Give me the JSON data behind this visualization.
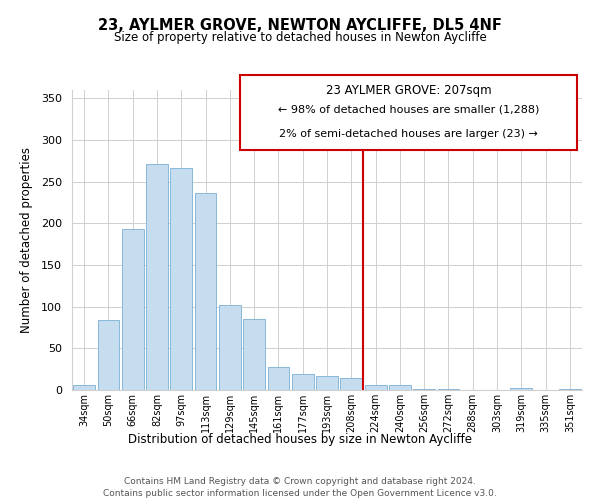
{
  "title": "23, AYLMER GROVE, NEWTON AYCLIFFE, DL5 4NF",
  "subtitle": "Size of property relative to detached houses in Newton Aycliffe",
  "xlabel": "Distribution of detached houses by size in Newton Aycliffe",
  "ylabel": "Number of detached properties",
  "bar_labels": [
    "34sqm",
    "50sqm",
    "66sqm",
    "82sqm",
    "97sqm",
    "113sqm",
    "129sqm",
    "145sqm",
    "161sqm",
    "177sqm",
    "193sqm",
    "208sqm",
    "224sqm",
    "240sqm",
    "256sqm",
    "272sqm",
    "288sqm",
    "303sqm",
    "319sqm",
    "335sqm",
    "351sqm"
  ],
  "bar_values": [
    6,
    84,
    193,
    271,
    266,
    236,
    102,
    85,
    28,
    19,
    17,
    15,
    6,
    6,
    1,
    1,
    0,
    0,
    2,
    0,
    1
  ],
  "bar_color": "#c6ddf0",
  "bar_edge_color": "#7ab0d4",
  "vline_x": 11.5,
  "vline_color": "#cc0000",
  "ylim": [
    0,
    360
  ],
  "yticks": [
    0,
    50,
    100,
    150,
    200,
    250,
    300,
    350
  ],
  "annotation_title": "23 AYLMER GROVE: 207sqm",
  "annotation_line1": "← 98% of detached houses are smaller (1,288)",
  "annotation_line2": "2% of semi-detached houses are larger (23) →",
  "footer_line1": "Contains HM Land Registry data © Crown copyright and database right 2024.",
  "footer_line2": "Contains public sector information licensed under the Open Government Licence v3.0.",
  "background_color": "#ffffff",
  "grid_color": "#d0d0d0"
}
